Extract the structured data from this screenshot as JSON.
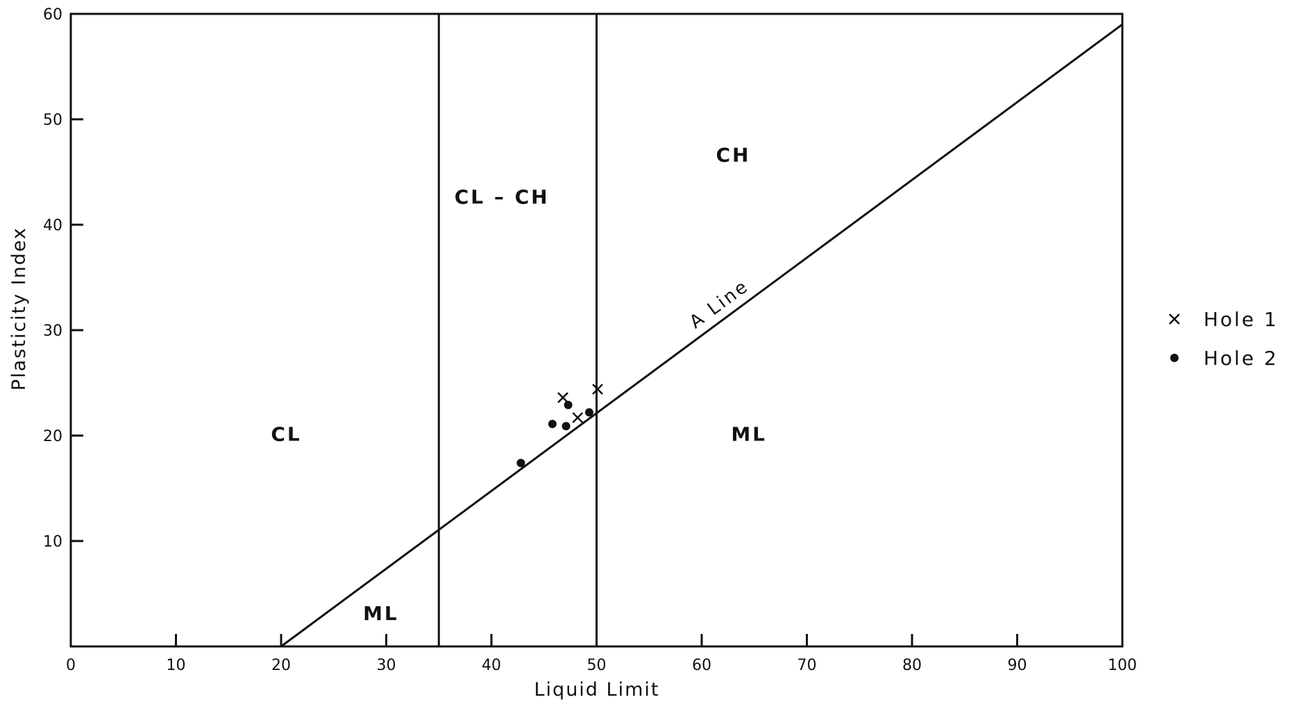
{
  "chart_data": {
    "type": "scatter",
    "xlabel": "Liquid Limit",
    "ylabel": "Plasticity Index",
    "xlim": [
      0,
      100
    ],
    "ylim": [
      0,
      60
    ],
    "x_ticks": [
      0,
      10,
      20,
      30,
      40,
      50,
      60,
      70,
      80,
      90,
      100
    ],
    "y_ticks": [
      10,
      20,
      30,
      40,
      50,
      60
    ],
    "grid": false,
    "legend_position": "right",
    "series": [
      {
        "name": "Hole 1",
        "marker": "x",
        "points": [
          {
            "x": 46.8,
            "y": 23.6
          },
          {
            "x": 48.2,
            "y": 21.7
          },
          {
            "x": 50.1,
            "y": 24.4
          }
        ]
      },
      {
        "name": "Hole 2",
        "marker": "dot",
        "points": [
          {
            "x": 42.8,
            "y": 17.4
          },
          {
            "x": 45.8,
            "y": 21.1
          },
          {
            "x": 47.1,
            "y": 20.9
          },
          {
            "x": 47.3,
            "y": 22.9
          },
          {
            "x": 49.3,
            "y": 22.2
          }
        ]
      }
    ],
    "reference_lines": {
      "a_line": {
        "label": "A  Line",
        "from": {
          "x": 20,
          "y": 0
        },
        "to": {
          "x": 100,
          "y": 59
        }
      },
      "vertical_lines": [
        35,
        50
      ]
    },
    "zone_labels": [
      {
        "text": "CL",
        "x": 20.5,
        "y": 19.5
      },
      {
        "text": "CL – CH",
        "x": 41,
        "y": 42
      },
      {
        "text": "CH",
        "x": 63,
        "y": 46
      },
      {
        "text": "ML",
        "x": 64.5,
        "y": 19.5
      },
      {
        "text": "ML",
        "x": 29.5,
        "y": 2.5
      }
    ]
  }
}
